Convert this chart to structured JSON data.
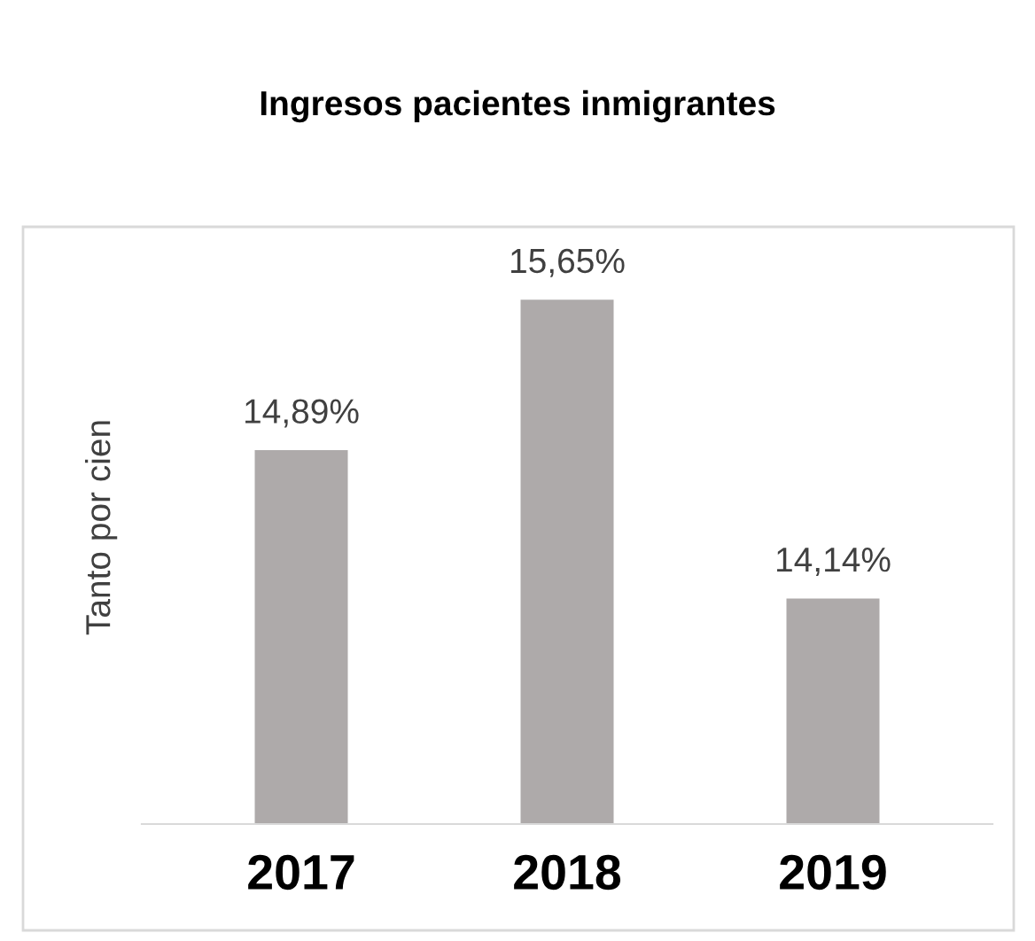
{
  "chart_data": {
    "type": "bar",
    "title": "Ingresos pacientes inmigrantes",
    "ylabel": "Tanto por cien",
    "categories": [
      "2017",
      "2018",
      "2019"
    ],
    "values": [
      14.89,
      15.65,
      14.14
    ],
    "value_labels": [
      "14,89%",
      "15,65%",
      "14,14%"
    ],
    "color": "#aeaaaa",
    "ylim": [
      13,
      16
    ],
    "grid": false,
    "legend": false
  }
}
